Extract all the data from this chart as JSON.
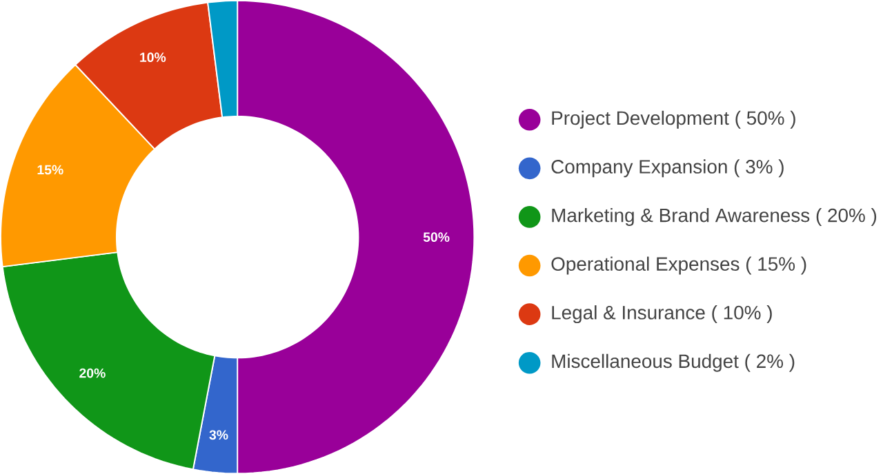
{
  "chart_data": {
    "type": "donut",
    "categories": [
      "Project Development ( 50% )",
      "Company Expansion ( 3% )",
      "Marketing & Brand Awareness ( 20% )",
      "Operational Expenses ( 15% )",
      "Legal & Insurance ( 10% )",
      "Miscellaneous Budget ( 2% )"
    ],
    "values": [
      50,
      3,
      20,
      15,
      10,
      2
    ],
    "colors": [
      "#990099",
      "#3366cc",
      "#109618",
      "#ff9900",
      "#dc3912",
      "#0099c6"
    ],
    "value_labels": [
      "50%",
      "3%",
      "20%",
      "15%",
      "10%",
      null
    ],
    "legend": "right"
  }
}
